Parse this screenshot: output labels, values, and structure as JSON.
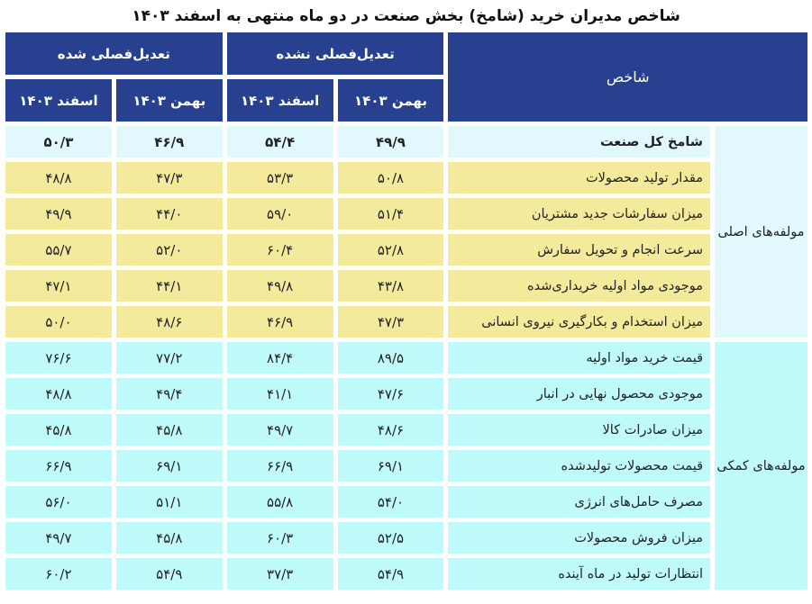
{
  "title": "شاخص مدیران خرید (شامخ) بخش صنعت در دو ماه منتهی به اسفند ۱۴۰۳",
  "header": {
    "indicator": "شاخص",
    "groups": {
      "not_adjusted": "تعدیل‌فصلی نشده",
      "adjusted": "تعدیل‌فصلی شده"
    },
    "months": {
      "bahman": "بهمن ۱۴۰۳",
      "esfand": "اسفند ۱۴۰۳"
    }
  },
  "categories": {
    "main": "مولفه‌های اصلی",
    "auxiliary": "مولفه‌های کمکی"
  },
  "rows": [
    {
      "label": "شامخ کل صنعت",
      "nsa_bahman": "۴۹/۹",
      "nsa_esfand": "۵۴/۴",
      "sa_bahman": "۴۶/۹",
      "sa_esfand": "۵۰/۳"
    },
    {
      "label": "مقدار تولید محصولات",
      "nsa_bahman": "۵۰/۸",
      "nsa_esfand": "۵۳/۳",
      "sa_bahman": "۴۷/۳",
      "sa_esfand": "۴۸/۸"
    },
    {
      "label": "میزان سفارشات جدید مشتریان",
      "nsa_bahman": "۵۱/۴",
      "nsa_esfand": "۵۹/۰",
      "sa_bahman": "۴۴/۰",
      "sa_esfand": "۴۹/۹"
    },
    {
      "label": "سرعت انجام و تحویل سفارش",
      "nsa_bahman": "۵۲/۸",
      "nsa_esfand": "۶۰/۴",
      "sa_bahman": "۵۲/۰",
      "sa_esfand": "۵۵/۷"
    },
    {
      "label": "موجودی مواد اولیه خریداری‌شده",
      "nsa_bahman": "۴۳/۸",
      "nsa_esfand": "۴۹/۸",
      "sa_bahman": "۴۴/۱",
      "sa_esfand": "۴۷/۱"
    },
    {
      "label": "میزان استخدام و بکارگیری نیروی انسانی",
      "nsa_bahman": "۴۷/۳",
      "nsa_esfand": "۴۶/۹",
      "sa_bahman": "۴۸/۶",
      "sa_esfand": "۵۰/۰"
    },
    {
      "label": "قیمت خرید مواد اولیه",
      "nsa_bahman": "۸۹/۵",
      "nsa_esfand": "۸۴/۴",
      "sa_bahman": "۷۷/۲",
      "sa_esfand": "۷۶/۶"
    },
    {
      "label": "موجودی محصول نهایی در انبار",
      "nsa_bahman": "۴۷/۶",
      "nsa_esfand": "۴۱/۱",
      "sa_bahman": "۴۹/۴",
      "sa_esfand": "۴۸/۸"
    },
    {
      "label": "میزان صادرات کالا",
      "nsa_bahman": "۴۸/۶",
      "nsa_esfand": "۴۹/۷",
      "sa_bahman": "۴۵/۸",
      "sa_esfand": "۴۵/۸"
    },
    {
      "label": "قیمت محصولات تولیدشده",
      "nsa_bahman": "۶۹/۱",
      "nsa_esfand": "۶۶/۹",
      "sa_bahman": "۶۹/۱",
      "sa_esfand": "۶۶/۹"
    },
    {
      "label": "مصرف حامل‌های انرژی",
      "nsa_bahman": "۵۴/۰",
      "nsa_esfand": "۵۵/۸",
      "sa_bahman": "۵۱/۱",
      "sa_esfand": "۵۶/۰"
    },
    {
      "label": "میزان فروش محصولات",
      "nsa_bahman": "۵۲/۵",
      "nsa_esfand": "۶۰/۳",
      "sa_bahman": "۴۵/۸",
      "sa_esfand": "۴۹/۷"
    },
    {
      "label": "انتظارات تولید در ماه آینده",
      "nsa_bahman": "۵۴/۹",
      "nsa_esfand": "۳۷/۳",
      "sa_bahman": "۵۴/۹",
      "sa_esfand": "۶۰/۲"
    }
  ],
  "colors": {
    "header_bg": "#27408f",
    "total_row_bg": "#e1f9fd",
    "main_rows_bg": "#f3eb9b",
    "aux_rows_bg": "#c0fbfb"
  }
}
